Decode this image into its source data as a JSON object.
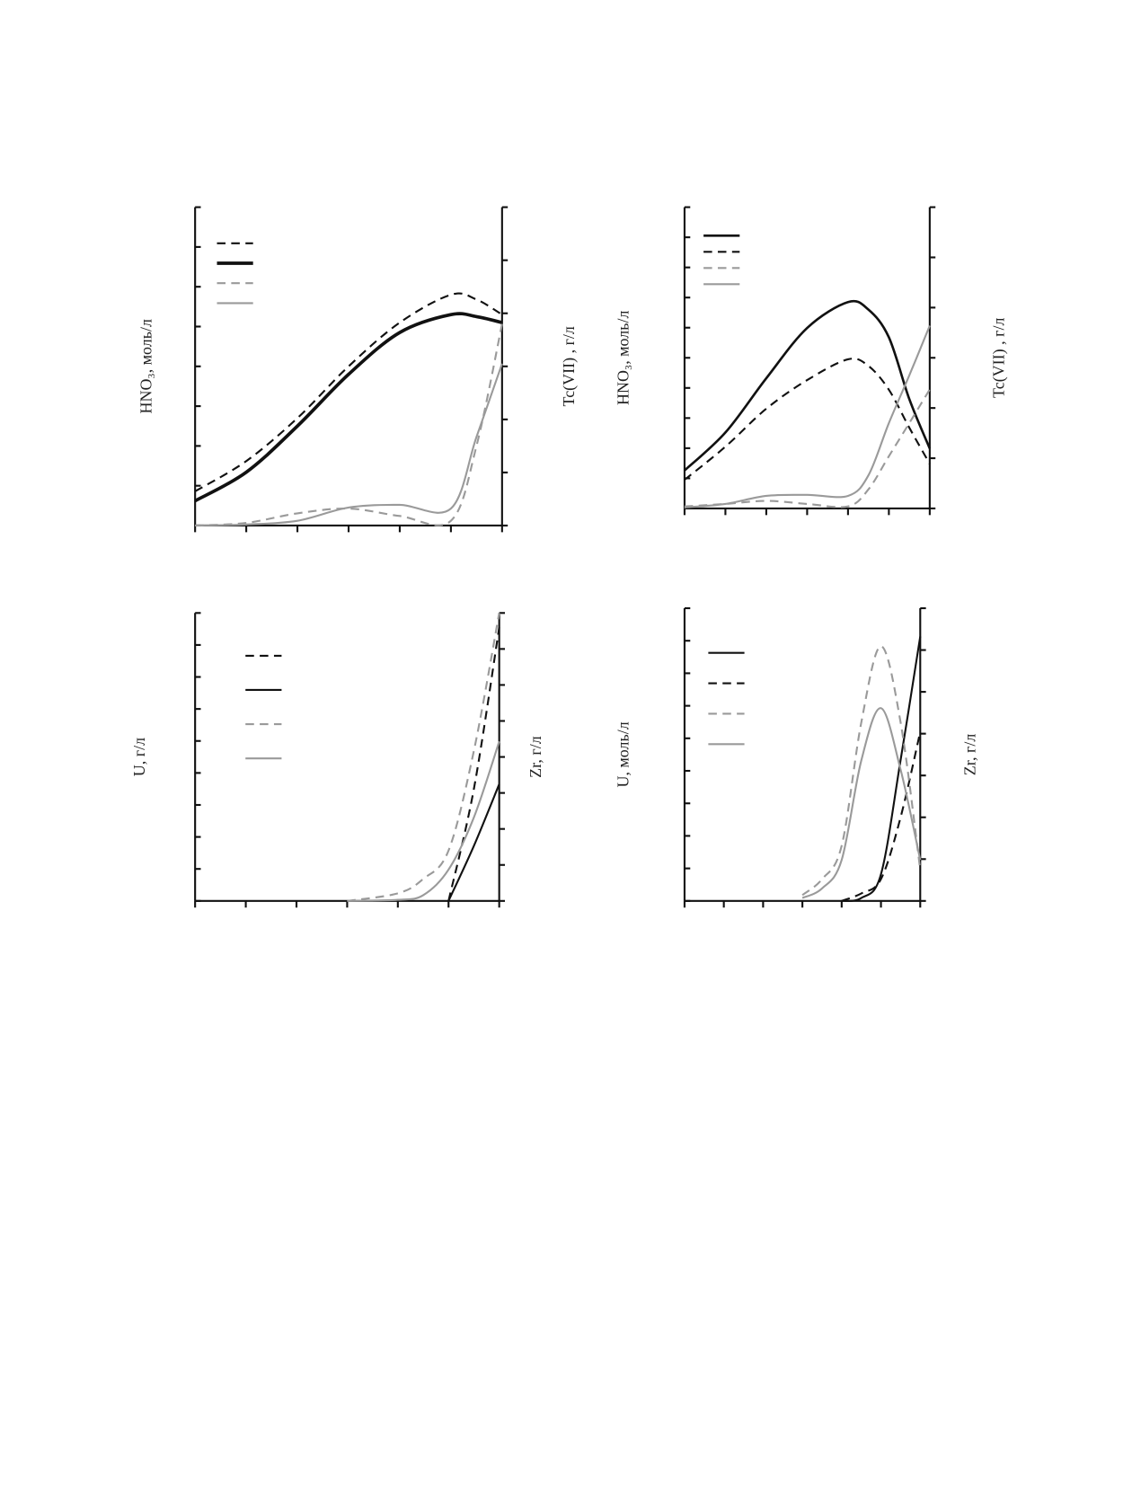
{
  "chart_data": [
    {
      "type": "line",
      "y_label": "HNO₃, моль/л",
      "y2_label": "Tc(VII) , г/л",
      "x": [
        0,
        1,
        2,
        3,
        4,
        5,
        5.5,
        6
      ],
      "xlim": [
        0,
        6
      ],
      "xticks": [
        0,
        1,
        2,
        3,
        4,
        5,
        6
      ],
      "ylim": [
        0,
        8
      ],
      "yticks": [
        0,
        1,
        2,
        3,
        4,
        5,
        6,
        7,
        8
      ],
      "y2lim": [
        0,
        6
      ],
      "y2ticks": [
        0,
        1,
        2,
        3,
        4,
        5,
        6
      ],
      "legend": "upper left",
      "series": [
        {
          "color": "#111111",
          "dash": true,
          "width": 2,
          "values": [
            0.86,
            1.62,
            2.7,
            4.0,
            5.1,
            5.8,
            5.68,
            5.3
          ]
        },
        {
          "color": "#111111",
          "dash": false,
          "width": 3.5,
          "values": [
            0.62,
            1.34,
            2.5,
            3.8,
            4.85,
            5.3,
            5.25,
            5.1
          ]
        },
        {
          "color": "#9a9a9a",
          "dash": true,
          "width": 2,
          "axis": "y2",
          "values": [
            0,
            0.05,
            0.23,
            0.32,
            0.18,
            0.09,
            1.5,
            3.8
          ]
        },
        {
          "color": "#9a9a9a",
          "dash": false,
          "width": 2,
          "axis": "y2",
          "values": [
            0,
            0.02,
            0.09,
            0.34,
            0.39,
            0.32,
            1.67,
            3.05
          ]
        }
      ]
    },
    {
      "type": "line",
      "y_label": "HNO₃, моль/л",
      "y2_label": "Tc(VII) , г/л",
      "x": [
        0,
        1,
        2,
        3,
        4,
        4.5,
        5,
        5.5,
        6
      ],
      "xlim": [
        0,
        6
      ],
      "xticks": [
        0,
        1,
        2,
        3,
        4,
        5,
        6
      ],
      "ylim": [
        0,
        10
      ],
      "yticks": [
        0,
        1,
        2,
        3,
        4,
        5,
        6,
        7,
        8,
        9,
        10
      ],
      "y2lim": [
        0,
        6
      ],
      "y2ticks": [
        0,
        1,
        2,
        3,
        4,
        5,
        6
      ],
      "legend": "upper left",
      "series": [
        {
          "color": "#111111",
          "dash": false,
          "width": 2.5,
          "values": [
            1.26,
            2.52,
            4.32,
            5.99,
            6.85,
            6.6,
            5.68,
            3.63,
            1.99
          ]
        },
        {
          "color": "#111111",
          "dash": true,
          "width": 2,
          "values": [
            0.95,
            2.05,
            3.31,
            4.26,
            4.95,
            4.73,
            3.94,
            2.68,
            1.48
          ]
        },
        {
          "color": "#9a9a9a",
          "dash": true,
          "width": 2,
          "axis": "y2",
          "values": [
            0.04,
            0.09,
            0.15,
            0.09,
            0.04,
            0.38,
            1.04,
            1.7,
            2.37
          ]
        },
        {
          "color": "#9a9a9a",
          "dash": false,
          "width": 2,
          "axis": "y2",
          "values": [
            0.02,
            0.09,
            0.25,
            0.27,
            0.25,
            0.66,
            1.7,
            2.65,
            3.64
          ]
        }
      ]
    },
    {
      "type": "line",
      "y_label": "U, г/л",
      "y2_label": "Zr, г/л",
      "x": [
        0,
        1,
        2,
        3,
        4,
        4.5,
        5,
        5.5,
        6
      ],
      "xlim": [
        0,
        6
      ],
      "xticks": [
        0,
        1,
        2,
        3,
        4,
        5,
        6
      ],
      "ylim": [
        0,
        9
      ],
      "yticks": [
        0,
        1,
        2,
        3,
        4,
        5,
        6,
        7,
        8,
        9
      ],
      "y2lim": [
        0,
        8
      ],
      "y2ticks": [
        0,
        1,
        2,
        3,
        4,
        5,
        6,
        7,
        8
      ],
      "legend": "upper left",
      "series": [
        {
          "color": "#111111",
          "dash": true,
          "width": 2,
          "values": [
            null,
            null,
            null,
            null,
            null,
            null,
            0,
            3.5,
            8.55
          ]
        },
        {
          "color": "#111111",
          "dash": false,
          "width": 2,
          "values": [
            null,
            null,
            null,
            null,
            null,
            null,
            0,
            1.72,
            3.65
          ]
        },
        {
          "color": "#9a9a9a",
          "dash": true,
          "width": 2,
          "axis": "y2",
          "values": [
            null,
            null,
            null,
            0,
            0.21,
            0.61,
            1.4,
            4.17,
            8.0
          ]
        },
        {
          "color": "#9a9a9a",
          "dash": false,
          "width": 2,
          "axis": "y2",
          "values": [
            null,
            null,
            null,
            0,
            0.03,
            0.16,
            0.87,
            2.32,
            4.43
          ]
        }
      ]
    },
    {
      "type": "line",
      "y_label": "U, моль/л",
      "y2_label": "Zr, г/л",
      "x": [
        0,
        1,
        2,
        3,
        3.5,
        4,
        4.5,
        5,
        5.5,
        6
      ],
      "xlim": [
        0,
        6
      ],
      "xticks": [
        0,
        1,
        2,
        3,
        4,
        5,
        6
      ],
      "ylim": [
        0,
        9
      ],
      "yticks": [
        0,
        1,
        2,
        3,
        4,
        5,
        6,
        7,
        8,
        9
      ],
      "y2lim": [
        0,
        7
      ],
      "y2ticks": [
        0,
        1,
        2,
        3,
        4,
        5,
        6,
        7
      ],
      "legend": "upper left",
      "series": [
        {
          "color": "#111111",
          "dash": false,
          "width": 2,
          "values": [
            null,
            null,
            null,
            null,
            null,
            0,
            0.09,
            0.82,
            4.33,
            8.13
          ]
        },
        {
          "color": "#111111",
          "dash": true,
          "width": 2,
          "values": [
            null,
            null,
            null,
            null,
            null,
            0,
            0.23,
            0.67,
            2.57,
            5.2
          ]
        },
        {
          "color": "#9a9a9a",
          "dash": true,
          "width": 2,
          "axis": "y2",
          "values": [
            null,
            null,
            null,
            0.14,
            0.52,
            1.32,
            4.27,
            6.09,
            4.27,
            0.75
          ]
        },
        {
          "color": "#9a9a9a",
          "dash": false,
          "width": 2,
          "axis": "y2",
          "values": [
            null,
            null,
            null,
            0.07,
            0.3,
            0.98,
            3.36,
            4.61,
            3.14,
            0.98
          ]
        }
      ]
    }
  ]
}
